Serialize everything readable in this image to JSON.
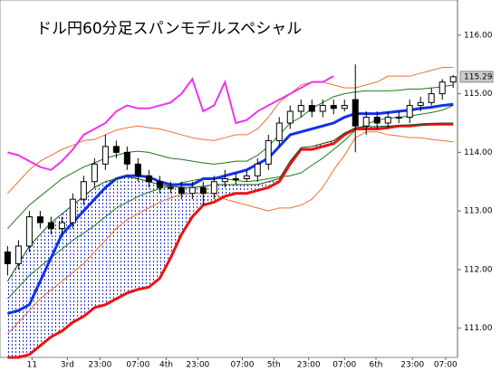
{
  "chart_data": {
    "type": "candlestick",
    "title": "ドル円60分足スパンモデルスペシャル",
    "xlim": [
      -0.7,
      41.4
    ],
    "ylim": [
      110.5,
      116.6
    ],
    "yticks": [
      {
        "value": 111,
        "label": "111.00"
      },
      {
        "value": 112,
        "label": "112.00"
      },
      {
        "value": 113,
        "label": "113.00"
      },
      {
        "value": 114,
        "label": "114.00"
      },
      {
        "value": 115,
        "label": "115.00"
      },
      {
        "value": 116,
        "label": "116.00"
      }
    ],
    "xticks": [
      {
        "value": 2.25,
        "label": "11"
      },
      {
        "value": 5.5,
        "label": "3rd"
      },
      {
        "value": 8.5,
        "label": "23:00"
      },
      {
        "value": 12,
        "label": "07:00"
      },
      {
        "value": 14.6,
        "label": "4th"
      },
      {
        "value": 17.5,
        "label": "23:00"
      },
      {
        "value": 21.6,
        "label": "07:00"
      },
      {
        "value": 24.5,
        "label": "5th"
      },
      {
        "value": 27.7,
        "label": "23:00"
      },
      {
        "value": 31,
        "label": "07:00"
      },
      {
        "value": 33.9,
        "label": "6th"
      },
      {
        "value": 37.25,
        "label": "23:00"
      },
      {
        "value": 40.3,
        "label": "07:00"
      }
    ],
    "last_price": 115.29,
    "open": [
      112.3,
      112.1,
      112.4,
      112.9,
      112.8,
      112.7,
      112.8,
      113.2,
      113.5,
      113.8,
      114.1,
      114.0,
      113.8,
      113.6,
      113.5,
      113.4,
      113.4,
      113.3,
      113.4,
      113.3,
      113.5,
      113.55,
      113.55,
      113.6,
      113.8,
      114.2,
      114.5,
      114.7,
      114.8,
      114.7,
      114.8,
      114.75,
      114.9,
      114.45,
      114.6,
      114.5,
      114.6,
      114.6,
      114.8,
      114.85,
      115.0,
      115.2
    ],
    "high": [
      112.4,
      112.5,
      113.0,
      113.0,
      112.9,
      112.9,
      113.3,
      113.6,
      113.9,
      114.3,
      114.2,
      114.1,
      113.9,
      113.7,
      113.6,
      113.5,
      113.5,
      113.5,
      113.5,
      113.6,
      113.7,
      113.65,
      113.7,
      113.9,
      114.3,
      114.6,
      114.8,
      114.9,
      114.9,
      114.9,
      114.9,
      114.9,
      115.5,
      114.7,
      114.7,
      114.7,
      114.7,
      114.9,
      114.95,
      115.1,
      115.25,
      115.32
    ],
    "low": [
      111.9,
      112.0,
      112.3,
      112.7,
      112.6,
      112.6,
      112.7,
      113.1,
      113.4,
      113.7,
      113.9,
      113.7,
      113.5,
      113.4,
      113.3,
      113.3,
      113.2,
      113.2,
      113.1,
      113.2,
      113.4,
      113.45,
      113.5,
      113.5,
      113.7,
      114.1,
      114.4,
      114.6,
      114.6,
      114.6,
      114.65,
      114.7,
      114.0,
      114.3,
      114.4,
      114.4,
      114.5,
      114.5,
      114.7,
      114.8,
      114.9,
      115.1
    ],
    "close": [
      112.1,
      112.4,
      112.9,
      112.8,
      112.7,
      112.8,
      113.2,
      113.5,
      113.8,
      114.1,
      114.0,
      113.8,
      113.6,
      113.5,
      113.4,
      113.4,
      113.3,
      113.4,
      113.3,
      113.5,
      113.55,
      113.55,
      113.6,
      113.8,
      114.2,
      114.5,
      114.7,
      114.8,
      114.7,
      114.8,
      114.75,
      114.8,
      114.45,
      114.6,
      114.5,
      114.6,
      114.6,
      114.8,
      114.85,
      115.0,
      115.2,
      115.29
    ],
    "cloud_between": [
      6,
      7
    ],
    "cloud_color": "#2233cc",
    "series": [
      {
        "color": "#f07030",
        "width": 1,
        "values": [
          113.3,
          113.5,
          113.7,
          113.85,
          113.95,
          114.05,
          114.12,
          114.2,
          114.22,
          114.3,
          114.38,
          114.42,
          114.45,
          114.42,
          114.4,
          114.35,
          114.3,
          114.25,
          114.22,
          114.2,
          114.25,
          114.3,
          114.3,
          114.4,
          114.6,
          114.85,
          115.0,
          115.15,
          115.2,
          115.2,
          115.15,
          115.1,
          115.1,
          115.15,
          115.2,
          115.3,
          115.3,
          115.3,
          115.35,
          115.4,
          115.45,
          115.45
        ]
      },
      {
        "color": "#f07030",
        "width": 1,
        "values": [
          110.9,
          111.1,
          111.3,
          111.5,
          111.65,
          111.8,
          111.95,
          112.1,
          112.3,
          112.5,
          112.7,
          112.85,
          112.95,
          113.05,
          113.15,
          113.22,
          113.28,
          113.3,
          113.3,
          113.3,
          113.2,
          113.15,
          113.1,
          113.05,
          113.0,
          113.05,
          113.05,
          113.1,
          113.2,
          113.4,
          113.7,
          113.95,
          114.25,
          114.35,
          114.35,
          114.3,
          114.28,
          114.25,
          114.25,
          114.22,
          114.2,
          114.18
        ]
      },
      {
        "color": "#1a7a1a",
        "width": 1,
        "values": [
          112.7,
          112.9,
          113.1,
          113.25,
          113.4,
          113.55,
          113.65,
          113.75,
          113.82,
          113.9,
          113.95,
          114.0,
          114.02,
          114.0,
          113.95,
          113.9,
          113.88,
          113.85,
          113.82,
          113.8,
          113.82,
          113.85,
          113.85,
          113.95,
          114.1,
          114.3,
          114.5,
          114.6,
          114.75,
          114.85,
          114.95,
          115.0,
          115.03,
          115.05,
          115.05,
          115.05,
          115.06,
          115.08,
          115.08,
          115.1,
          115.12,
          115.15
        ]
      },
      {
        "color": "#1a7a1a",
        "width": 1,
        "values": [
          111.5,
          111.7,
          111.9,
          112.05,
          112.2,
          112.35,
          112.5,
          112.62,
          112.75,
          112.9,
          113.05,
          113.15,
          113.25,
          113.32,
          113.38,
          113.43,
          113.48,
          113.52,
          113.55,
          113.55,
          113.55,
          113.52,
          113.5,
          113.52,
          113.55,
          113.58,
          113.6,
          113.65,
          113.78,
          113.9,
          114.05,
          114.2,
          114.38,
          114.48,
          114.55,
          114.58,
          114.6,
          114.62,
          114.65,
          114.68,
          114.72,
          114.8
        ]
      },
      {
        "color": "#ee33ee",
        "width": 2,
        "values": [
          114.0,
          113.95,
          113.85,
          113.75,
          113.7,
          113.85,
          114.05,
          114.3,
          114.4,
          114.5,
          114.7,
          114.8,
          114.75,
          114.75,
          114.8,
          114.85,
          115.0,
          115.25,
          114.7,
          114.8,
          115.2,
          114.5,
          114.55,
          114.7,
          114.8,
          114.9,
          115.0,
          115.1,
          115.2,
          115.2,
          115.3,
          null,
          null,
          null,
          null,
          null,
          null,
          null,
          null,
          null,
          null,
          null
        ]
      },
      {
        "color": "#1030f0",
        "width": 3,
        "values": [
          111.25,
          111.3,
          111.4,
          111.8,
          112.2,
          112.6,
          112.8,
          113.0,
          113.2,
          113.4,
          113.55,
          113.6,
          113.6,
          113.58,
          113.5,
          113.45,
          113.45,
          113.45,
          113.55,
          113.55,
          113.6,
          113.65,
          113.7,
          113.8,
          113.9,
          114.1,
          114.3,
          114.35,
          114.4,
          114.45,
          114.5,
          114.6,
          114.66,
          114.66,
          114.66,
          114.68,
          114.7,
          114.72,
          114.75,
          114.77,
          114.8,
          114.82
        ]
      },
      {
        "color": "#ee1111",
        "width": 3,
        "values": [
          110.5,
          110.5,
          110.55,
          110.7,
          110.85,
          110.95,
          111.1,
          111.2,
          111.35,
          111.4,
          111.5,
          111.6,
          111.66,
          111.7,
          111.85,
          112.2,
          112.6,
          112.9,
          113.1,
          113.15,
          113.25,
          113.3,
          113.3,
          113.35,
          113.4,
          113.5,
          113.8,
          114.05,
          114.05,
          114.1,
          114.15,
          114.3,
          114.4,
          114.4,
          114.4,
          114.42,
          114.45,
          114.45,
          114.47,
          114.48,
          114.48,
          114.48
        ]
      },
      {
        "color": "#105010",
        "width": 1,
        "values": [
          111.8,
          112.1,
          112.4,
          112.6,
          112.8,
          112.95,
          113.1,
          113.25,
          113.4,
          113.5,
          113.55,
          113.58,
          113.55,
          113.5,
          113.45,
          113.42,
          113.4,
          113.4,
          113.42,
          113.45,
          113.45,
          113.45,
          113.45,
          113.45,
          113.5,
          113.55,
          113.85,
          114.08,
          114.1,
          114.15,
          114.2,
          114.33,
          114.42,
          114.44,
          114.44,
          114.45,
          114.46,
          114.47,
          114.48,
          114.49,
          114.5,
          114.5
        ]
      }
    ]
  }
}
